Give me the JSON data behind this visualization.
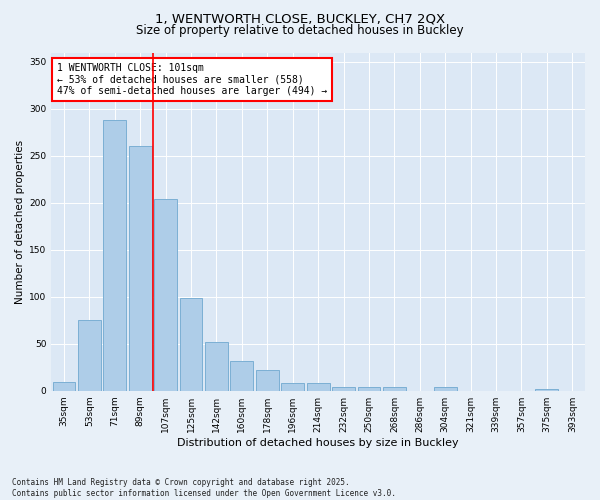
{
  "title1": "1, WENTWORTH CLOSE, BUCKLEY, CH7 2QX",
  "title2": "Size of property relative to detached houses in Buckley",
  "xlabel": "Distribution of detached houses by size in Buckley",
  "ylabel": "Number of detached properties",
  "categories": [
    "35sqm",
    "53sqm",
    "71sqm",
    "89sqm",
    "107sqm",
    "125sqm",
    "142sqm",
    "160sqm",
    "178sqm",
    "196sqm",
    "214sqm",
    "232sqm",
    "250sqm",
    "268sqm",
    "286sqm",
    "304sqm",
    "321sqm",
    "339sqm",
    "357sqm",
    "375sqm",
    "393sqm"
  ],
  "values": [
    9,
    75,
    288,
    260,
    204,
    99,
    52,
    32,
    22,
    8,
    8,
    4,
    4,
    4,
    0,
    4,
    0,
    0,
    0,
    2,
    0
  ],
  "bar_color": "#aecde8",
  "bar_edge_color": "#7bafd4",
  "vline_color": "red",
  "annotation_text": "1 WENTWORTH CLOSE: 101sqm\n← 53% of detached houses are smaller (558)\n47% of semi-detached houses are larger (494) →",
  "annotation_box_color": "white",
  "annotation_box_edge": "red",
  "bg_color": "#e8f0f8",
  "plot_bg_color": "#dce8f5",
  "footer": "Contains HM Land Registry data © Crown copyright and database right 2025.\nContains public sector information licensed under the Open Government Licence v3.0.",
  "ylim": [
    0,
    360
  ],
  "yticks": [
    0,
    50,
    100,
    150,
    200,
    250,
    300,
    350
  ],
  "title1_fontsize": 9.5,
  "title2_fontsize": 8.5,
  "xlabel_fontsize": 8,
  "ylabel_fontsize": 7.5,
  "tick_fontsize": 6.5,
  "annotation_fontsize": 7,
  "footer_fontsize": 5.5,
  "vline_bar_index": 3.5
}
